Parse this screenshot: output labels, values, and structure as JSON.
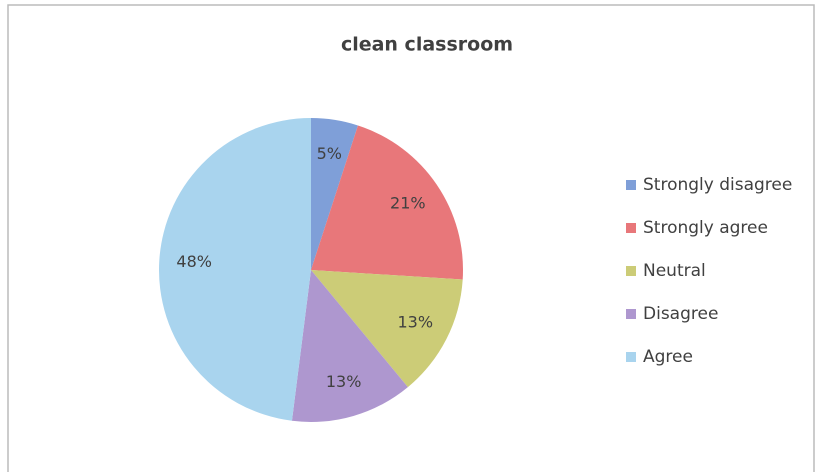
{
  "chart_data": {
    "type": "pie",
    "title": "clean classroom",
    "categories": [
      "Strongly disagree",
      "Strongly agree",
      "Neutral",
      "Disagree",
      "Agree"
    ],
    "values": [
      5,
      21,
      13,
      13,
      48
    ],
    "value_labels": [
      "5%",
      "21%",
      "13%",
      "13%",
      "48%"
    ],
    "colors": [
      "#7f9fd8",
      "#e8777a",
      "#cccc77",
      "#ae97cf",
      "#a9d4ee"
    ],
    "legend": "right"
  }
}
